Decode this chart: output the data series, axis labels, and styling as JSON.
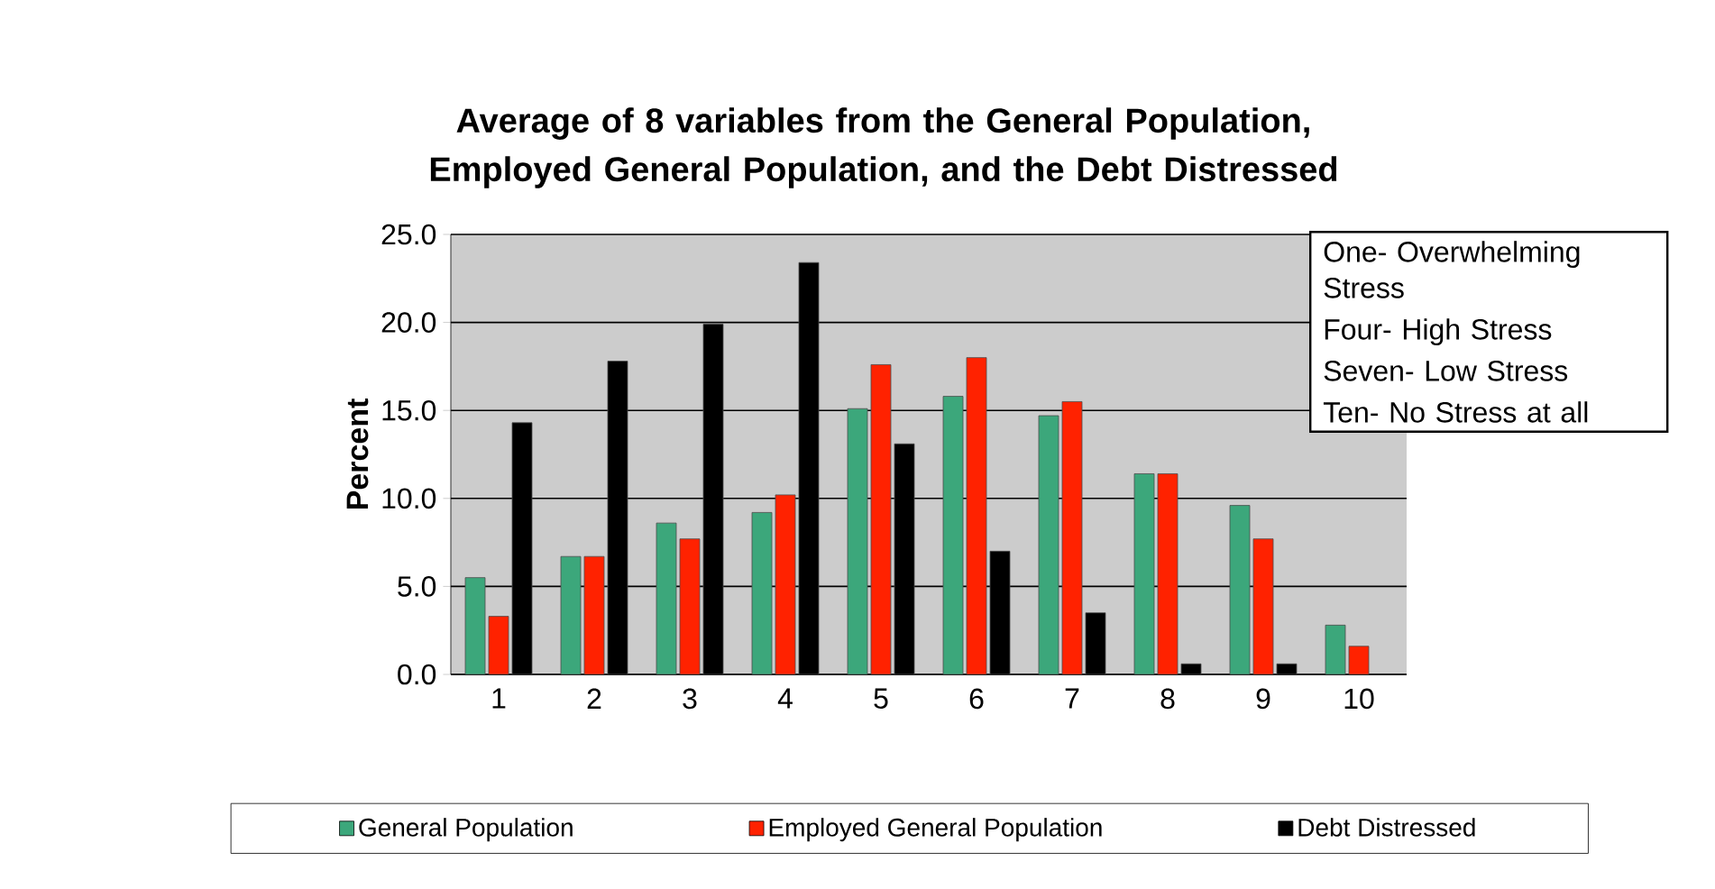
{
  "chart_data": {
    "type": "bar",
    "title": "Average of 8 variables from the General Population, Employed General Population, and the Debt Distressed",
    "ylabel": "Percent",
    "categories": [
      "1",
      "2",
      "3",
      "4",
      "5",
      "6",
      "7",
      "8",
      "9",
      "10"
    ],
    "series": [
      {
        "name": "General Population",
        "color": "#3ca77b",
        "values": [
          5.5,
          6.7,
          8.6,
          9.2,
          15.1,
          15.8,
          14.7,
          11.4,
          9.6,
          2.8
        ]
      },
      {
        "name": "Employed General Population",
        "color": "#ff2200",
        "values": [
          3.3,
          6.7,
          7.7,
          10.2,
          17.6,
          18.0,
          15.5,
          11.4,
          7.7,
          1.6
        ]
      },
      {
        "name": "Debt Distressed",
        "color": "#000000",
        "values": [
          14.3,
          17.8,
          19.9,
          23.4,
          13.1,
          7.0,
          3.5,
          0.6,
          0.6,
          null
        ]
      }
    ],
    "ylim": [
      0,
      25
    ],
    "yticks": [
      {
        "value": 0,
        "label": "0.0"
      },
      {
        "value": 5,
        "label": "5.0"
      },
      {
        "value": 10,
        "label": "10.0"
      },
      {
        "value": 15,
        "label": "15.0"
      },
      {
        "value": 20,
        "label": "20.0"
      },
      {
        "value": 25,
        "label": "25.0"
      }
    ],
    "annotations": [
      "One- Overwhelming Stress",
      "Four- High Stress",
      "Seven- Low Stress",
      "Ten- No Stress at all"
    ],
    "grid": "y",
    "legend": "bottom"
  }
}
